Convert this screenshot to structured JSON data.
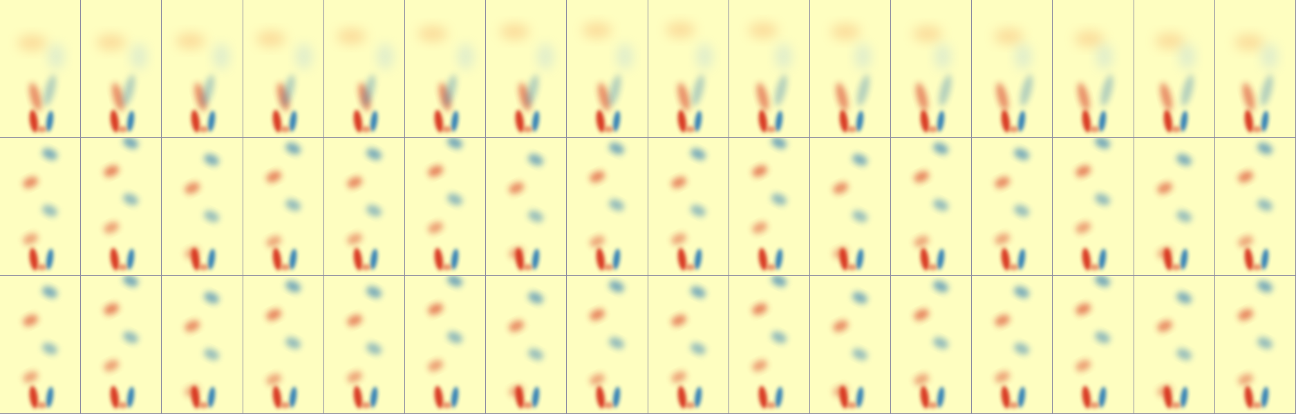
{
  "figure": {
    "rows": 3,
    "columns": 16,
    "colors": {
      "background": "#fefec0",
      "positive": "#d7301f",
      "negative": "#2c7bb6",
      "grid": "#8a8aa0"
    },
    "row_kinds": [
      "faint-far-wake",
      "vortex-street",
      "vortex-street"
    ]
  }
}
